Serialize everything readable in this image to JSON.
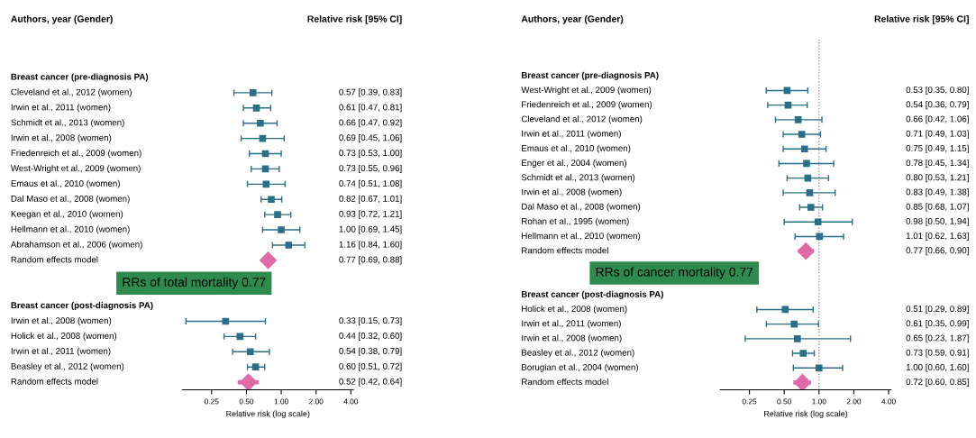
{
  "chart_data": [
    {
      "type": "scatter",
      "orientation": "horizontal",
      "log": "x",
      "ylabel": "Authors, year (Gender)",
      "y2label": "Relative risk [95% CI]",
      "xlabel": "Relative risk (log scale)",
      "xlim": [
        0.14,
        4.2
      ],
      "xticks": [
        {
          "value": 0.25,
          "label": "0.25"
        },
        {
          "value": 0.5,
          "label": "0.50"
        },
        {
          "value": 1,
          "label": "1.00"
        },
        {
          "value": 2,
          "label": "2.00"
        },
        {
          "value": 4,
          "label": "4.00"
        }
      ],
      "categories": [
        null,
        null,
        "Breast cancer (pre-diagnosis PA)",
        "Cleveland et al., 2012 (women)",
        "Irwin et al., 2011 (women)",
        "Schmidt et al., 2013 (women)",
        "Irwin et al., 2008 (women)",
        "Friedenreich et al., 2009 (women)",
        "West-Wright et al., 2009 (women)",
        "Emaus et al., 2010 (women)",
        "Dal Maso et al., 2008 (women)",
        "Keegan et al., 2010 (women)",
        "Hellmann et al., 2010 (women)",
        "Abrahamson et al., 2006 (women)",
        "Random effects model",
        null,
        null,
        "Breast cancer (post-diagnosis PA)",
        "Irwin et al., 2008 (women)",
        "Holick et al., 2008 (women)",
        "Irwin et al., 2011 (women)",
        "Beasley et al., 2012 (women)",
        "Random effects model"
      ],
      "series": [
        {
          "color": "#2a6f8a",
          "marker": "square",
          "colors": [
            null,
            null,
            null,
            "#2a6f8a",
            "#2a6f8a",
            "#2a6f8a",
            "#2a6f8a",
            "#2a6f8a",
            "#2a6f8a",
            "#2a6f8a",
            "#2a6f8a",
            "#2a6f8a",
            "#2a6f8a",
            "#2a6f8a",
            "#e06aa8",
            null,
            null,
            null,
            "#2a6f8a",
            "#2a6f8a",
            "#2a6f8a",
            "#2a6f8a",
            "#e06aa8"
          ],
          "values": [
            null,
            null,
            null,
            0.57,
            0.61,
            0.66,
            0.69,
            0.73,
            0.73,
            0.74,
            0.82,
            0.93,
            1.0,
            1.16,
            0.77,
            null,
            null,
            null,
            0.33,
            0.44,
            0.54,
            0.6,
            0.52
          ],
          "errors": [
            null,
            null,
            null,
            [
              0.39,
              0.83
            ],
            [
              0.47,
              0.81
            ],
            [
              0.47,
              0.92
            ],
            [
              0.45,
              1.06
            ],
            [
              0.53,
              1.0
            ],
            [
              0.55,
              0.96
            ],
            [
              0.51,
              1.08
            ],
            [
              0.67,
              1.01
            ],
            [
              0.72,
              1.21
            ],
            [
              0.69,
              1.45
            ],
            [
              0.84,
              1.6
            ],
            [
              0.69,
              0.88
            ],
            null,
            null,
            null,
            [
              0.15,
              0.73
            ],
            [
              0.32,
              0.6
            ],
            [
              0.38,
              0.79
            ],
            [
              0.51,
              0.72
            ],
            [
              0.42,
              0.64
            ]
          ],
          "value_labels": [
            null,
            null,
            null,
            "0.57 [0.39, 0.83]",
            "0.61 [0.47, 0.81]",
            "0.66 [0.47, 0.92]",
            "0.69 [0.45, 1.06]",
            "0.73 [0.53, 1.00]",
            "0.73 [0.55, 0.96]",
            "0.74 [0.51, 1.08]",
            "0.82 [0.67, 1.01]",
            "0.93 [0.72, 1.21]",
            "1.00 [0.69, 1.45]",
            "1.16 [0.84, 1.60]",
            "0.77 [0.69, 0.88]",
            null,
            null,
            null,
            "0.33 [0.15, 0.73]",
            "0.44 [0.32, 0.60]",
            "0.54 [0.38, 0.79]",
            "0.60 [0.51, 0.72]",
            "0.52 [0.42, 0.64]"
          ]
        }
      ],
      "annotations": [
        "RRs of total mortality 0.77"
      ]
    },
    {
      "type": "scatter",
      "orientation": "horizontal",
      "log": "x",
      "ylabel": "Authors, year (Gender)",
      "y2label": "Relative risk [95% CI]",
      "xlabel": "Relative risk (log scale)",
      "xlim": [
        0.14,
        4.2
      ],
      "xticks": [
        {
          "value": 0.25,
          "label": "0.25"
        },
        {
          "value": 0.5,
          "label": "0.50"
        },
        {
          "value": 1,
          "label": "1.00"
        },
        {
          "value": 2,
          "label": "2.00"
        },
        {
          "value": 4,
          "label": "4.00"
        }
      ],
      "ref_lines": [
        {
          "axis": "x",
          "value": 1,
          "line_style": "dotted",
          "color": "#888888"
        }
      ],
      "categories": [
        null,
        null,
        "Breast cancer (pre-diagnosis PA)",
        "West-Wright et al., 2009 (women)",
        "Friedenreich et al., 2009 (women)",
        "Cleveland et al., 2012 (women)",
        "Irwin et al., 2011 (women)",
        "Emaus et al., 2010 (women)",
        "Enger et al., 2004 (women)",
        "Schmidt et al., 2013 (women)",
        "Irwin et al., 2008 (women)",
        "Dal Maso et al., 2008 (women)",
        "Rohan et al., 1995 (women)",
        "Hellmann et al., 2010 (women)",
        "Random effects model",
        null,
        null,
        "Breast cancer (post-diagnosis PA)",
        "Holick et al., 2008 (women)",
        "Irwin et al., 2011 (women)",
        "Irwin et al., 2008 (women)",
        "Beasley et al., 2012 (women)",
        "Borugian et al., 2004 (women)",
        "Random effects model"
      ],
      "series": [
        {
          "color": "#2a6f8a",
          "marker": "square",
          "colors": [
            null,
            null,
            null,
            "#2a6f8a",
            "#2a6f8a",
            "#2a6f8a",
            "#2a6f8a",
            "#2a6f8a",
            "#2a6f8a",
            "#2a6f8a",
            "#2a6f8a",
            "#2a6f8a",
            "#2a6f8a",
            "#2a6f8a",
            "#e06aa8",
            null,
            null,
            null,
            "#2a6f8a",
            "#2a6f8a",
            "#2a6f8a",
            "#2a6f8a",
            "#2a6f8a",
            "#e06aa8"
          ],
          "values": [
            null,
            null,
            null,
            0.53,
            0.54,
            0.66,
            0.71,
            0.75,
            0.78,
            0.8,
            0.83,
            0.85,
            0.98,
            1.01,
            0.77,
            null,
            null,
            null,
            0.51,
            0.61,
            0.65,
            0.73,
            1.0,
            0.72
          ],
          "errors": [
            null,
            null,
            null,
            [
              0.35,
              0.8
            ],
            [
              0.36,
              0.79
            ],
            [
              0.42,
              1.06
            ],
            [
              0.49,
              1.03
            ],
            [
              0.49,
              1.15
            ],
            [
              0.45,
              1.34
            ],
            [
              0.53,
              1.21
            ],
            [
              0.49,
              1.38
            ],
            [
              0.68,
              1.07
            ],
            [
              0.5,
              1.94
            ],
            [
              0.62,
              1.63
            ],
            [
              0.66,
              0.9
            ],
            null,
            null,
            null,
            [
              0.29,
              0.89
            ],
            [
              0.35,
              0.99
            ],
            [
              0.23,
              1.87
            ],
            [
              0.59,
              0.91
            ],
            [
              0.6,
              1.6
            ],
            [
              0.6,
              0.85
            ]
          ],
          "value_labels": [
            null,
            null,
            null,
            "0.53 [0.35, 0.80]",
            "0.54 [0.36, 0.79]",
            "0.66 [0.42, 1.06]",
            "0.71 [0.49, 1.03]",
            "0.75 [0.49, 1.15]",
            "0.78 [0.45, 1.34]",
            "0.80 [0.53, 1.21]",
            "0.83 [0.49, 1.38]",
            "0.85 [0.68, 1.07]",
            "0.98 [0.50, 1.94]",
            "1.01 [0.62, 1.63]",
            "0.77 [0.66, 0.90]",
            null,
            null,
            null,
            "0.51 [0.29, 0.89]",
            "0.61 [0.35, 0.99]",
            "0.65 [0.23, 1.87]",
            "0.73 [0.59, 0.91]",
            "1.00 [0.60, 1.60]",
            "0.72 [0.60, 0.85]"
          ]
        }
      ],
      "annotations": [
        "RRs of cancer mortality 0.77"
      ]
    }
  ]
}
